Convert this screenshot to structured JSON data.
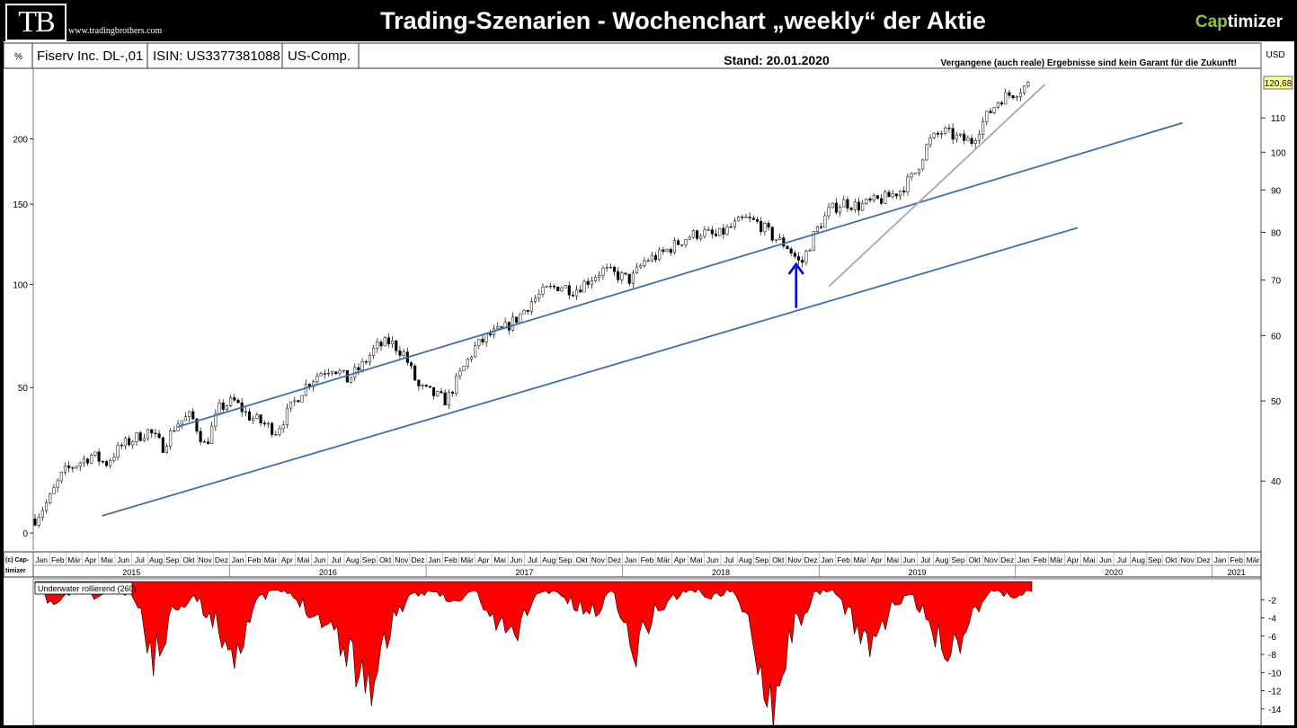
{
  "header": {
    "logo": "TB",
    "site": "www.tradingbrothers.com",
    "title": "Trading-Szenarien - Wochenchart „weekly“ der Aktie",
    "brand_cap": "Cap",
    "brand_rest": "timizer"
  },
  "info": {
    "pct": "%",
    "name": "Fiserv Inc. DL-,01",
    "isin": "ISIN: US3377381088",
    "exchange": "US-Comp.",
    "stand": "Stand: 20.01.2020",
    "disclaimer": "Vergangene (auch reale) Ergebnisse sind kein Garant für die Zukunft!",
    "currency": "USD",
    "copyright_top": "(c) Cap-",
    "copyright_bottom": "timizer",
    "last_price": "120,68"
  },
  "chart_data": [
    {
      "type": "candlestick",
      "interval": "weekly",
      "y_scale": "log",
      "ylim_usd": [
        33,
        126
      ],
      "left_axis_pct": [
        0,
        50,
        100,
        150,
        200
      ],
      "right_axis_usd": [
        40,
        50,
        60,
        70,
        80,
        90,
        100,
        110
      ],
      "annotation_arrow": "up",
      "trendlines": 3,
      "approx_weekly_closes_usd": [
        36,
        38,
        41,
        42,
        43,
        42,
        44,
        45,
        46,
        44,
        47,
        48,
        44,
        49,
        50,
        48,
        47,
        46,
        49,
        52,
        54,
        55,
        53,
        55,
        58,
        59,
        57,
        52,
        51,
        50,
        54,
        58,
        60,
        61,
        63,
        66,
        68,
        69,
        68,
        70,
        72,
        71,
        70,
        74,
        75,
        77,
        79,
        80,
        79,
        81,
        83,
        82,
        79,
        77,
        73,
        80,
        85,
        87,
        86,
        87,
        88,
        90,
        94,
        103,
        106,
        104,
        103,
        110,
        116,
        118,
        120.68
      ],
      "months": [
        "Jan",
        "Feb",
        "Mär",
        "Apr",
        "Mai",
        "Jun",
        "Jul",
        "Aug",
        "Sep",
        "Okt",
        "Nov",
        "Dez",
        "Jan",
        "Feb",
        "Mär",
        "Apr",
        "Mai",
        "Jun",
        "Jul",
        "Aug",
        "Sep",
        "Okt",
        "Nov",
        "Dez",
        "Jan",
        "Feb",
        "Mär",
        "Apr",
        "Mai",
        "Jun",
        "Jul",
        "Aug",
        "Sep",
        "Okt",
        "Nov",
        "Dez",
        "Jan",
        "Feb",
        "Mär",
        "Apr",
        "Mai",
        "Jun",
        "Jul",
        "Aug",
        "Sep",
        "Okt",
        "Nov",
        "Dez",
        "Jan",
        "Feb",
        "Mär",
        "Apr",
        "Mai",
        "Jun",
        "Jul",
        "Aug",
        "Sep",
        "Okt",
        "Nov",
        "Dez",
        "Jan",
        "Feb",
        "Mär",
        "Apr",
        "Mai",
        "Jun",
        "Jul",
        "Aug",
        "Sep",
        "Okt",
        "Nov",
        "Dez",
        "Jan",
        "Feb",
        "Mär"
      ],
      "years": [
        "2015",
        "2016",
        "2017",
        "2018",
        "2019",
        "2020",
        "2021"
      ]
    },
    {
      "type": "area",
      "title": "Underwater rollierend (260)",
      "ylim": [
        -15.5,
        0
      ],
      "y_ticks": [
        -2,
        -4,
        -6,
        -8,
        -10,
        -12,
        -14
      ],
      "approx_drawdown": [
        -1,
        -3,
        -1,
        -2,
        -1,
        -2,
        -10,
        -3,
        -2,
        -5,
        -9,
        -3,
        -1,
        -2,
        -4,
        -6,
        -10,
        -13,
        -4,
        -2,
        -1,
        -3,
        -1,
        -5,
        -7,
        -2,
        -1,
        -3,
        -4,
        -1,
        -9,
        -4,
        -2,
        -1,
        -2,
        -1,
        -7,
        -15,
        -6,
        -2,
        -1,
        -5,
        -8,
        -3,
        -2,
        -6,
        -9,
        -4,
        -1,
        -2,
        -1
      ]
    }
  ],
  "colors": {
    "up": "#ffffff",
    "down": "#000000",
    "trend": "#3c6eb4",
    "trend2": "#a8a8a8",
    "arrow": "#0000dd",
    "area": "#ff0000"
  }
}
